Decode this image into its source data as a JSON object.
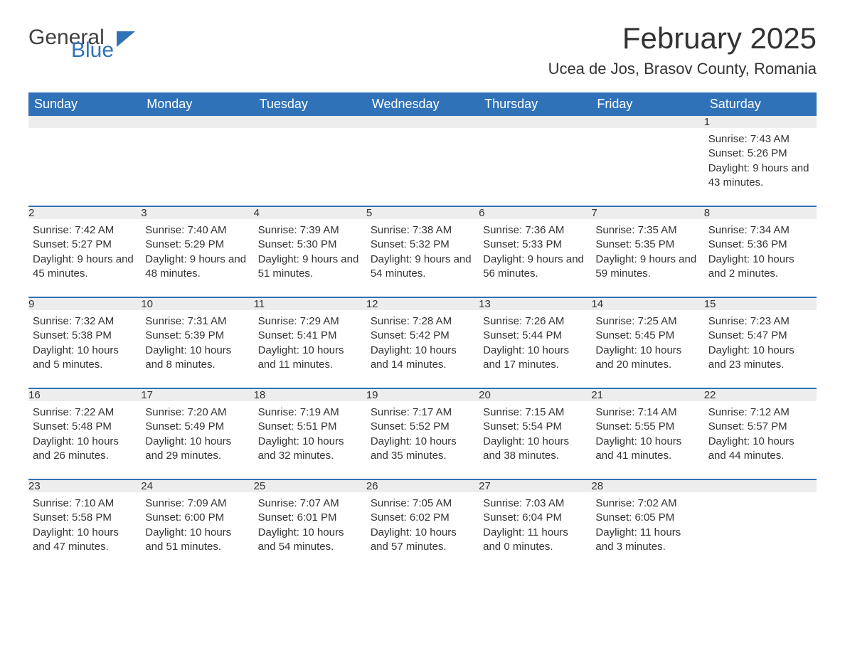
{
  "logo": {
    "text1": "General",
    "text2": "Blue"
  },
  "title": "February 2025",
  "location": "Ucea de Jos, Brasov County, Romania",
  "colors": {
    "header_bg": "#2f72b8",
    "header_fg": "#ffffff",
    "daynum_bg": "#ededed",
    "text": "#333333",
    "page_bg": "#ffffff"
  },
  "typography": {
    "title_fontsize": 42,
    "location_fontsize": 22,
    "header_fontsize": 18,
    "cell_fontsize": 15
  },
  "columns": [
    "Sunday",
    "Monday",
    "Tuesday",
    "Wednesday",
    "Thursday",
    "Friday",
    "Saturday"
  ],
  "weeks": [
    [
      null,
      null,
      null,
      null,
      null,
      null,
      {
        "day": "1",
        "sunrise": "Sunrise: 7:43 AM",
        "sunset": "Sunset: 5:26 PM",
        "daylight": "Daylight: 9 hours and 43 minutes."
      }
    ],
    [
      {
        "day": "2",
        "sunrise": "Sunrise: 7:42 AM",
        "sunset": "Sunset: 5:27 PM",
        "daylight": "Daylight: 9 hours and 45 minutes."
      },
      {
        "day": "3",
        "sunrise": "Sunrise: 7:40 AM",
        "sunset": "Sunset: 5:29 PM",
        "daylight": "Daylight: 9 hours and 48 minutes."
      },
      {
        "day": "4",
        "sunrise": "Sunrise: 7:39 AM",
        "sunset": "Sunset: 5:30 PM",
        "daylight": "Daylight: 9 hours and 51 minutes."
      },
      {
        "day": "5",
        "sunrise": "Sunrise: 7:38 AM",
        "sunset": "Sunset: 5:32 PM",
        "daylight": "Daylight: 9 hours and 54 minutes."
      },
      {
        "day": "6",
        "sunrise": "Sunrise: 7:36 AM",
        "sunset": "Sunset: 5:33 PM",
        "daylight": "Daylight: 9 hours and 56 minutes."
      },
      {
        "day": "7",
        "sunrise": "Sunrise: 7:35 AM",
        "sunset": "Sunset: 5:35 PM",
        "daylight": "Daylight: 9 hours and 59 minutes."
      },
      {
        "day": "8",
        "sunrise": "Sunrise: 7:34 AM",
        "sunset": "Sunset: 5:36 PM",
        "daylight": "Daylight: 10 hours and 2 minutes."
      }
    ],
    [
      {
        "day": "9",
        "sunrise": "Sunrise: 7:32 AM",
        "sunset": "Sunset: 5:38 PM",
        "daylight": "Daylight: 10 hours and 5 minutes."
      },
      {
        "day": "10",
        "sunrise": "Sunrise: 7:31 AM",
        "sunset": "Sunset: 5:39 PM",
        "daylight": "Daylight: 10 hours and 8 minutes."
      },
      {
        "day": "11",
        "sunrise": "Sunrise: 7:29 AM",
        "sunset": "Sunset: 5:41 PM",
        "daylight": "Daylight: 10 hours and 11 minutes."
      },
      {
        "day": "12",
        "sunrise": "Sunrise: 7:28 AM",
        "sunset": "Sunset: 5:42 PM",
        "daylight": "Daylight: 10 hours and 14 minutes."
      },
      {
        "day": "13",
        "sunrise": "Sunrise: 7:26 AM",
        "sunset": "Sunset: 5:44 PM",
        "daylight": "Daylight: 10 hours and 17 minutes."
      },
      {
        "day": "14",
        "sunrise": "Sunrise: 7:25 AM",
        "sunset": "Sunset: 5:45 PM",
        "daylight": "Daylight: 10 hours and 20 minutes."
      },
      {
        "day": "15",
        "sunrise": "Sunrise: 7:23 AM",
        "sunset": "Sunset: 5:47 PM",
        "daylight": "Daylight: 10 hours and 23 minutes."
      }
    ],
    [
      {
        "day": "16",
        "sunrise": "Sunrise: 7:22 AM",
        "sunset": "Sunset: 5:48 PM",
        "daylight": "Daylight: 10 hours and 26 minutes."
      },
      {
        "day": "17",
        "sunrise": "Sunrise: 7:20 AM",
        "sunset": "Sunset: 5:49 PM",
        "daylight": "Daylight: 10 hours and 29 minutes."
      },
      {
        "day": "18",
        "sunrise": "Sunrise: 7:19 AM",
        "sunset": "Sunset: 5:51 PM",
        "daylight": "Daylight: 10 hours and 32 minutes."
      },
      {
        "day": "19",
        "sunrise": "Sunrise: 7:17 AM",
        "sunset": "Sunset: 5:52 PM",
        "daylight": "Daylight: 10 hours and 35 minutes."
      },
      {
        "day": "20",
        "sunrise": "Sunrise: 7:15 AM",
        "sunset": "Sunset: 5:54 PM",
        "daylight": "Daylight: 10 hours and 38 minutes."
      },
      {
        "day": "21",
        "sunrise": "Sunrise: 7:14 AM",
        "sunset": "Sunset: 5:55 PM",
        "daylight": "Daylight: 10 hours and 41 minutes."
      },
      {
        "day": "22",
        "sunrise": "Sunrise: 7:12 AM",
        "sunset": "Sunset: 5:57 PM",
        "daylight": "Daylight: 10 hours and 44 minutes."
      }
    ],
    [
      {
        "day": "23",
        "sunrise": "Sunrise: 7:10 AM",
        "sunset": "Sunset: 5:58 PM",
        "daylight": "Daylight: 10 hours and 47 minutes."
      },
      {
        "day": "24",
        "sunrise": "Sunrise: 7:09 AM",
        "sunset": "Sunset: 6:00 PM",
        "daylight": "Daylight: 10 hours and 51 minutes."
      },
      {
        "day": "25",
        "sunrise": "Sunrise: 7:07 AM",
        "sunset": "Sunset: 6:01 PM",
        "daylight": "Daylight: 10 hours and 54 minutes."
      },
      {
        "day": "26",
        "sunrise": "Sunrise: 7:05 AM",
        "sunset": "Sunset: 6:02 PM",
        "daylight": "Daylight: 10 hours and 57 minutes."
      },
      {
        "day": "27",
        "sunrise": "Sunrise: 7:03 AM",
        "sunset": "Sunset: 6:04 PM",
        "daylight": "Daylight: 11 hours and 0 minutes."
      },
      {
        "day": "28",
        "sunrise": "Sunrise: 7:02 AM",
        "sunset": "Sunset: 6:05 PM",
        "daylight": "Daylight: 11 hours and 3 minutes."
      },
      null
    ]
  ]
}
